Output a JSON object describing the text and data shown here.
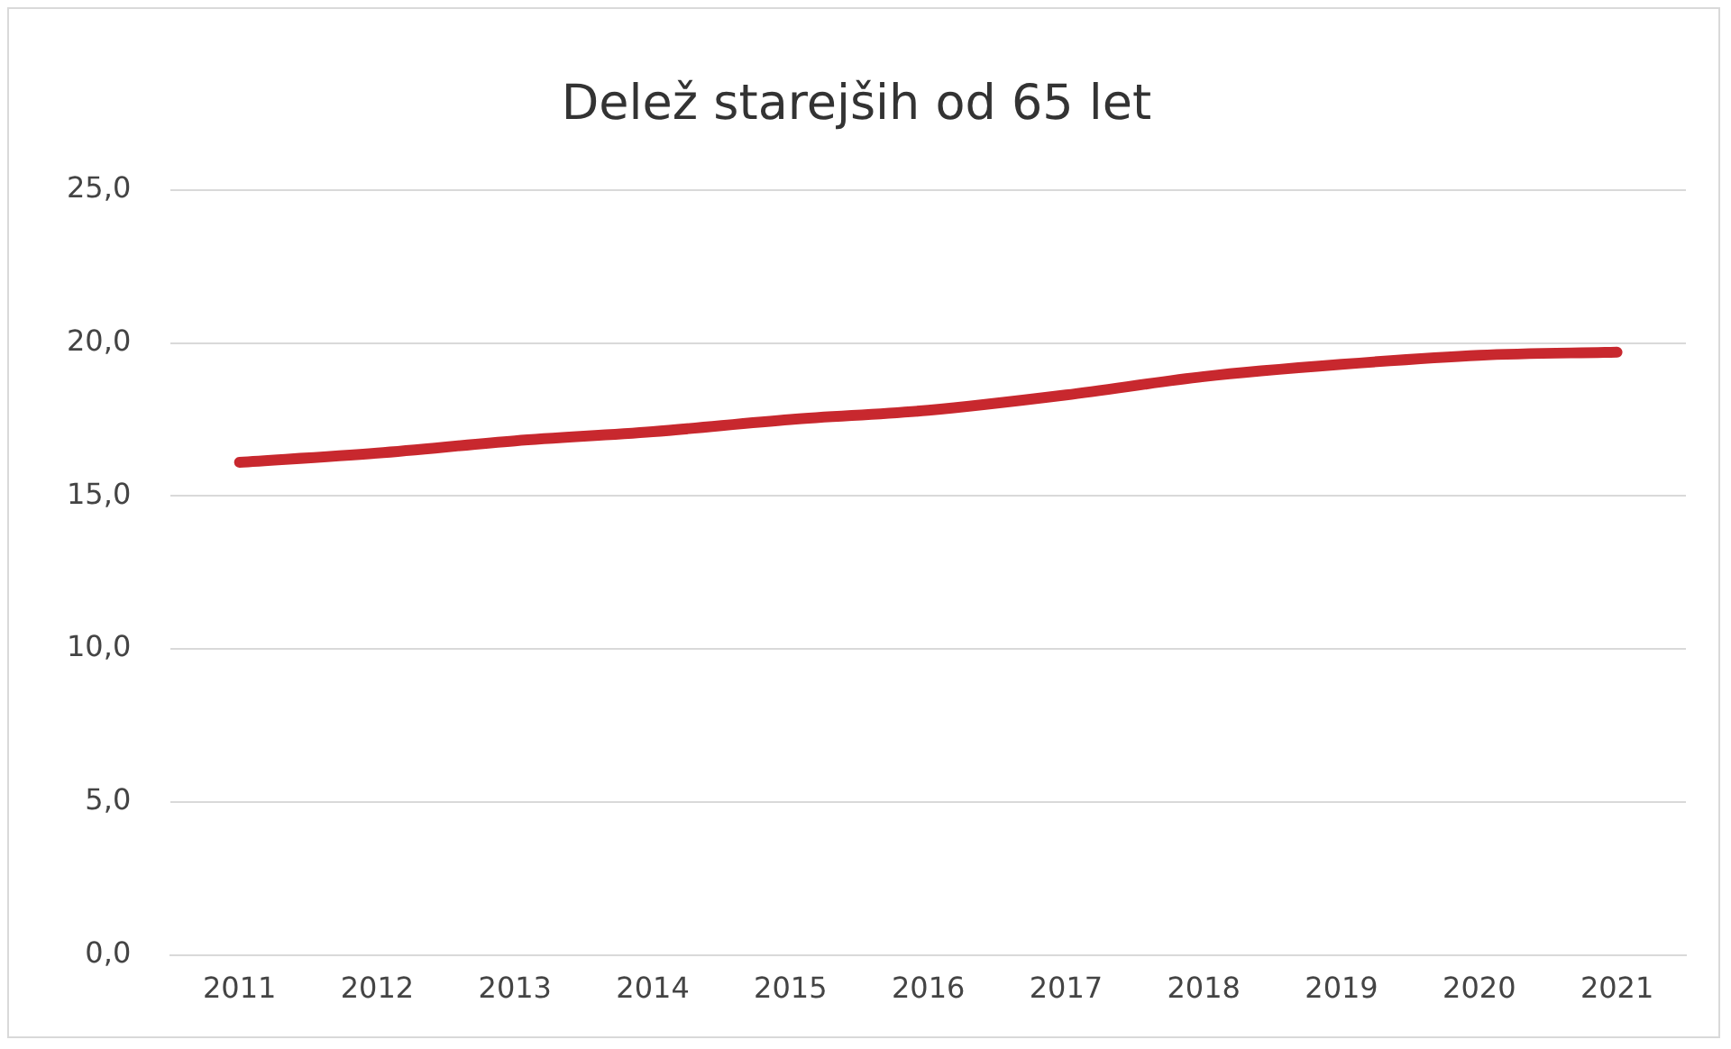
{
  "chart_data": {
    "type": "line",
    "title": "Delež starejših od 65 let",
    "categories": [
      "2011",
      "2012",
      "2013",
      "2014",
      "2015",
      "2016",
      "2017",
      "2018",
      "2019",
      "2020",
      "2021"
    ],
    "series": [
      {
        "color": "#c8282e",
        "values": [
          16.1,
          16.4,
          16.8,
          17.1,
          17.5,
          17.8,
          18.3,
          18.9,
          19.3,
          19.6,
          19.7
        ]
      }
    ],
    "ylim": [
      0,
      25
    ],
    "yticks": [
      {
        "value": 0,
        "label": "0,0"
      },
      {
        "value": 5,
        "label": "5,0"
      },
      {
        "value": 10,
        "label": "10,0"
      },
      {
        "value": 15,
        "label": "15,0"
      },
      {
        "value": 20,
        "label": "20,0"
      },
      {
        "value": 25,
        "label": "25,0"
      }
    ],
    "grid": "y",
    "legend": false,
    "marker": "none",
    "line_style": "solid"
  }
}
